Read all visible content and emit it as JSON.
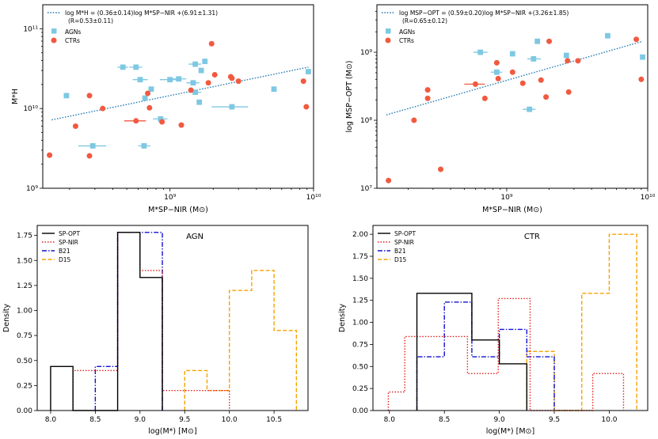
{
  "colors": {
    "agn": "#7ec8e3",
    "ctr": "#f15a40",
    "fit": "#2c7fb8",
    "sp_opt": "#000000",
    "sp_nir": "#e0201b",
    "b21": "#1010d0",
    "d15": "#f5a200"
  },
  "chart_data": [
    {
      "type": "scatter",
      "id": "top-left",
      "xscale": "log",
      "yscale": "log",
      "xlim": [
        130000000.0,
        10000000000.0
      ],
      "ylim": [
        1000000000.0,
        200000000000.0
      ],
      "xticks": [
        {
          "v": 1000000000.0,
          "label": "10⁹"
        },
        {
          "v": 10000000000.0,
          "label": "10¹⁰"
        }
      ],
      "yticks": [
        {
          "v": 1000000000.0,
          "label": "10⁹"
        },
        {
          "v": 10000000000.0,
          "label": "10¹⁰"
        },
        {
          "v": 100000000000.0,
          "label": "10¹¹"
        }
      ],
      "xlabel": "M*SP−NIR (M⊙)",
      "ylabel": "M*H",
      "fit_label": "log M*H = (0.36±0.14)log M*SP−NIR +(6.91±1.31)",
      "fit_stats": "(R=0.53±0.11)",
      "fit_line": {
        "x": [
          150000000.0,
          9200000000.0
        ],
        "y": [
          7200000000.0,
          33000000000.0
        ]
      },
      "series": [
        {
          "name": "AGNs",
          "marker": "square",
          "points": [
            {
              "x": 190000000.0,
              "y": 14500000000.0
            },
            {
              "x": 470000000.0,
              "y": 33000000000.0,
              "xerr": [
                430000000.0,
                510000000.0
              ]
            },
            {
              "x": 580000000.0,
              "y": 33000000000.0,
              "xerr": [
                520000000.0,
                640000000.0
              ]
            },
            {
              "x": 620000000.0,
              "y": 23000000000.0,
              "xerr": [
                550000000.0,
                700000000.0
              ]
            },
            {
              "x": 670000000.0,
              "y": 13500000000.0
            },
            {
              "x": 740000000.0,
              "y": 17500000000.0
            },
            {
              "x": 860000000.0,
              "y": 7400000000.0,
              "xerr": [
                760000000.0,
                960000000.0
              ]
            },
            {
              "x": 1000000000.0,
              "y": 23000000000.0,
              "xerr": [
                850000000.0,
                1150000000.0
              ]
            },
            {
              "x": 1150000000.0,
              "y": 23500000000.0,
              "xerr": [
                1000000000.0,
                1300000000.0
              ]
            },
            {
              "x": 1450000000.0,
              "y": 21000000000.0,
              "xerr": [
                1300000000.0,
                1600000000.0
              ]
            },
            {
              "x": 1500000000.0,
              "y": 16000000000.0,
              "xerr": [
                1350000000.0,
                1650000000.0
              ]
            },
            {
              "x": 1500000000.0,
              "y": 36000000000.0,
              "xerr": [
                1350000000.0,
                1650000000.0
              ]
            },
            {
              "x": 1650000000.0,
              "y": 30000000000.0
            },
            {
              "x": 1750000000.0,
              "y": 39000000000.0
            },
            {
              "x": 1600000000.0,
              "y": 12000000000.0
            },
            {
              "x": 2700000000.0,
              "y": 10500000000.0,
              "xerr": [
                1950000000.0,
                3500000000.0
              ]
            },
            {
              "x": 5300000000.0,
              "y": 17500000000.0
            },
            {
              "x": 9200000000.0,
              "y": 29000000000.0
            },
            {
              "x": 290000000.0,
              "y": 3400000000.0,
              "xerr": [
                230000000.0,
                360000000.0
              ]
            },
            {
              "x": 660000000.0,
              "y": 3400000000.0,
              "xerr": [
                600000000.0,
                730000000.0
              ]
            }
          ]
        },
        {
          "name": "CTRs",
          "marker": "circle",
          "points": [
            {
              "x": 145000000.0,
              "y": 2600000000.0
            },
            {
              "x": 220000000.0,
              "y": 6000000000.0
            },
            {
              "x": 275000000.0,
              "y": 14500000000.0
            },
            {
              "x": 275000000.0,
              "y": 2550000000.0
            },
            {
              "x": 340000000.0,
              "y": 10000000000.0
            },
            {
              "x": 580000000.0,
              "y": 7000000000.0,
              "xerr": [
                480000000.0,
                680000000.0
              ]
            },
            {
              "x": 700000000.0,
              "y": 15500000000.0
            },
            {
              "x": 720000000.0,
              "y": 10200000000.0
            },
            {
              "x": 880000000.0,
              "y": 6800000000.0
            },
            {
              "x": 1200000000.0,
              "y": 6200000000.0
            },
            {
              "x": 1400000000.0,
              "y": 17000000000.0
            },
            {
              "x": 1850000000.0,
              "y": 21000000000.0
            },
            {
              "x": 1950000000.0,
              "y": 65000000000.0
            },
            {
              "x": 2050000000.0,
              "y": 26500000000.0
            },
            {
              "x": 2650000000.0,
              "y": 25000000000.0
            },
            {
              "x": 2700000000.0,
              "y": 24000000000.0
            },
            {
              "x": 3000000000.0,
              "y": 22000000000.0
            },
            {
              "x": 8500000000.0,
              "y": 22000000000.0
            },
            {
              "x": 8900000000.0,
              "y": 10500000000.0
            }
          ]
        }
      ],
      "legend": [
        "AGNs",
        "CTRs"
      ]
    },
    {
      "type": "scatter",
      "id": "top-right",
      "xscale": "log",
      "yscale": "log",
      "xlim": [
        120000000.0,
        10000000000.0
      ],
      "ylim": [
        10000000.0,
        5000000000.0
      ],
      "xticks": [
        {
          "v": 1000000000.0,
          "label": "10⁹"
        },
        {
          "v": 10000000000.0,
          "label": "10¹⁰"
        }
      ],
      "yticks": [
        {
          "v": 10000000.0,
          "label": "10⁷"
        },
        {
          "v": 100000000.0,
          "label": "10⁸"
        },
        {
          "v": 1000000000.0,
          "label": "10⁹"
        }
      ],
      "xlabel": "M*SP−NIR (M⊙)",
      "ylabel": "log MSP−OPT (M⊙)",
      "fit_label": "log MSP−OPT = (0.59±0.20)log M*SP−NIR +(3.26±1.85)",
      "fit_stats": "(R=0.65±0.12)",
      "fit_line": {
        "x": [
          140000000.0,
          9200000000.0
        ],
        "y": [
          120000000.0,
          1450000000.0
        ]
      },
      "series": [
        {
          "name": "AGNs",
          "marker": "square",
          "points": [
            {
              "x": 650000000.0,
              "y": 1000000000.0,
              "xerr": [
                580000000.0,
                730000000.0
              ]
            },
            {
              "x": 850000000.0,
              "y": 510000000.0,
              "xerr": [
                770000000.0,
                930000000.0
              ]
            },
            {
              "x": 1100000000.0,
              "y": 950000000.0
            },
            {
              "x": 1550000000.0,
              "y": 800000000.0,
              "xerr": [
                1400000000.0,
                1750000000.0
              ]
            },
            {
              "x": 1650000000.0,
              "y": 1450000000.0
            },
            {
              "x": 1450000000.0,
              "y": 145000000.0,
              "xerr": [
                1300000000.0,
                1600000000.0
              ]
            },
            {
              "x": 2650000000.0,
              "y": 900000000.0
            },
            {
              "x": 5200000000.0,
              "y": 1750000000.0
            },
            {
              "x": 9200000000.0,
              "y": 850000000.0
            }
          ]
        },
        {
          "name": "CTRs",
          "marker": "circle",
          "points": [
            {
              "x": 145000000.0,
              "y": 13000000.0
            },
            {
              "x": 220000000.0,
              "y": 100000000.0
            },
            {
              "x": 275000000.0,
              "y": 280000000.0
            },
            {
              "x": 275000000.0,
              "y": 210000000.0
            },
            {
              "x": 340000000.0,
              "y": 19000000.0
            },
            {
              "x": 600000000.0,
              "y": 340000000.0,
              "xerr": [
                500000000.0,
                700000000.0
              ]
            },
            {
              "x": 700000000.0,
              "y": 210000000.0
            },
            {
              "x": 850000000.0,
              "y": 700000000.0
            },
            {
              "x": 870000000.0,
              "y": 410000000.0
            },
            {
              "x": 1100000000.0,
              "y": 510000000.0
            },
            {
              "x": 1300000000.0,
              "y": 350000000.0
            },
            {
              "x": 1750000000.0,
              "y": 390000000.0
            },
            {
              "x": 1900000000.0,
              "y": 220000000.0
            },
            {
              "x": 2000000000.0,
              "y": 1450000000.0
            },
            {
              "x": 2700000000.0,
              "y": 750000000.0
            },
            {
              "x": 2750000000.0,
              "y": 260000000.0
            },
            {
              "x": 3200000000.0,
              "y": 750000000.0
            },
            {
              "x": 8300000000.0,
              "y": 1550000000.0
            },
            {
              "x": 9000000000.0,
              "y": 400000000.0
            }
          ]
        }
      ],
      "legend": [
        "AGNs",
        "CTRs"
      ]
    },
    {
      "type": "histogram",
      "id": "bottom-left",
      "title": "AGN",
      "xlim": [
        7.85,
        10.88
      ],
      "ylim": [
        0,
        1.85
      ],
      "xticks": [
        8.0,
        8.5,
        9.0,
        9.5,
        10.0,
        10.5
      ],
      "xticklabels": [
        "8.0",
        "8.5",
        "9.0",
        "9.5",
        "10.0",
        "10.5"
      ],
      "yticks": [
        0,
        0.25,
        0.5,
        0.75,
        1.0,
        1.25,
        1.5,
        1.75
      ],
      "yticklabels": [
        "0.00",
        "0.25",
        "0.50",
        "0.75",
        "1.00",
        "1.25",
        "1.50",
        "1.75"
      ],
      "xlabel": "log(M*) [M⊙]",
      "ylabel": "Density",
      "series": [
        {
          "name": "SP-OPT",
          "style": "solid",
          "edges": [
            8.0,
            8.25,
            8.5,
            8.75,
            9.0,
            9.25
          ],
          "values": [
            0.44,
            0.0,
            0.0,
            1.78,
            1.33
          ]
        },
        {
          "name": "SP-NIR",
          "style": "dotted",
          "edges": [
            8.25,
            8.5,
            8.75,
            9.0,
            9.25,
            9.5,
            9.75,
            10.0
          ],
          "values": [
            0.4,
            0.4,
            1.78,
            1.4,
            0.2,
            0.2,
            0.2
          ]
        },
        {
          "name": "B21",
          "style": "dashdot",
          "edges": [
            8.5,
            8.75,
            9.0,
            9.25
          ],
          "values": [
            0.44,
            1.78,
            1.78
          ]
        },
        {
          "name": "D15",
          "style": "dashed",
          "edges": [
            9.5,
            9.75,
            10.0,
            10.25,
            10.5,
            10.75
          ],
          "values": [
            0.4,
            0.2,
            1.2,
            1.4,
            0.8
          ]
        }
      ],
      "legend": [
        "SP-OPT",
        "SP-NIR",
        "B21",
        "D15"
      ]
    },
    {
      "type": "histogram",
      "id": "bottom-right",
      "title": "CTR",
      "xlim": [
        7.85,
        10.35
      ],
      "ylim": [
        0,
        2.1
      ],
      "xticks": [
        8.0,
        8.5,
        9.0,
        9.5,
        10.0
      ],
      "xticklabels": [
        "8.0",
        "8.5",
        "9.0",
        "9.5",
        "10.0"
      ],
      "yticks": [
        0,
        0.25,
        0.5,
        0.75,
        1.0,
        1.25,
        1.5,
        1.75,
        2.0
      ],
      "yticklabels": [
        "0.00",
        "0.25",
        "0.50",
        "0.75",
        "1.00",
        "1.25",
        "1.50",
        "1.75",
        "2.00"
      ],
      "xlabel": "log(M*) [M⊙]",
      "ylabel": "Density",
      "series": [
        {
          "name": "SP-OPT",
          "style": "solid",
          "edges": [
            8.25,
            8.75,
            9.0,
            9.25
          ],
          "values": [
            1.33,
            0.8,
            0.53
          ]
        },
        {
          "name": "SP-NIR",
          "style": "dotted",
          "edges": [
            7.99,
            8.14,
            8.42,
            8.71,
            8.99,
            9.28,
            9.56,
            9.85,
            10.13
          ],
          "values": [
            0.21,
            0.84,
            0.84,
            0.42,
            1.27,
            0.0,
            0.0,
            0.42
          ]
        },
        {
          "name": "B21",
          "style": "dashdot",
          "edges": [
            8.25,
            8.5,
            8.75,
            9.0,
            9.25,
            9.5
          ],
          "values": [
            0.61,
            1.23,
            0.61,
            0.92,
            0.61
          ]
        },
        {
          "name": "D15",
          "style": "dashed",
          "edges": [
            9.25,
            9.5,
            9.75,
            10.0,
            10.25
          ],
          "values": [
            0.67,
            0.0,
            1.33,
            2.0
          ]
        }
      ],
      "legend": [
        "SP-OPT",
        "SP-NIR",
        "B21",
        "D15"
      ]
    }
  ]
}
